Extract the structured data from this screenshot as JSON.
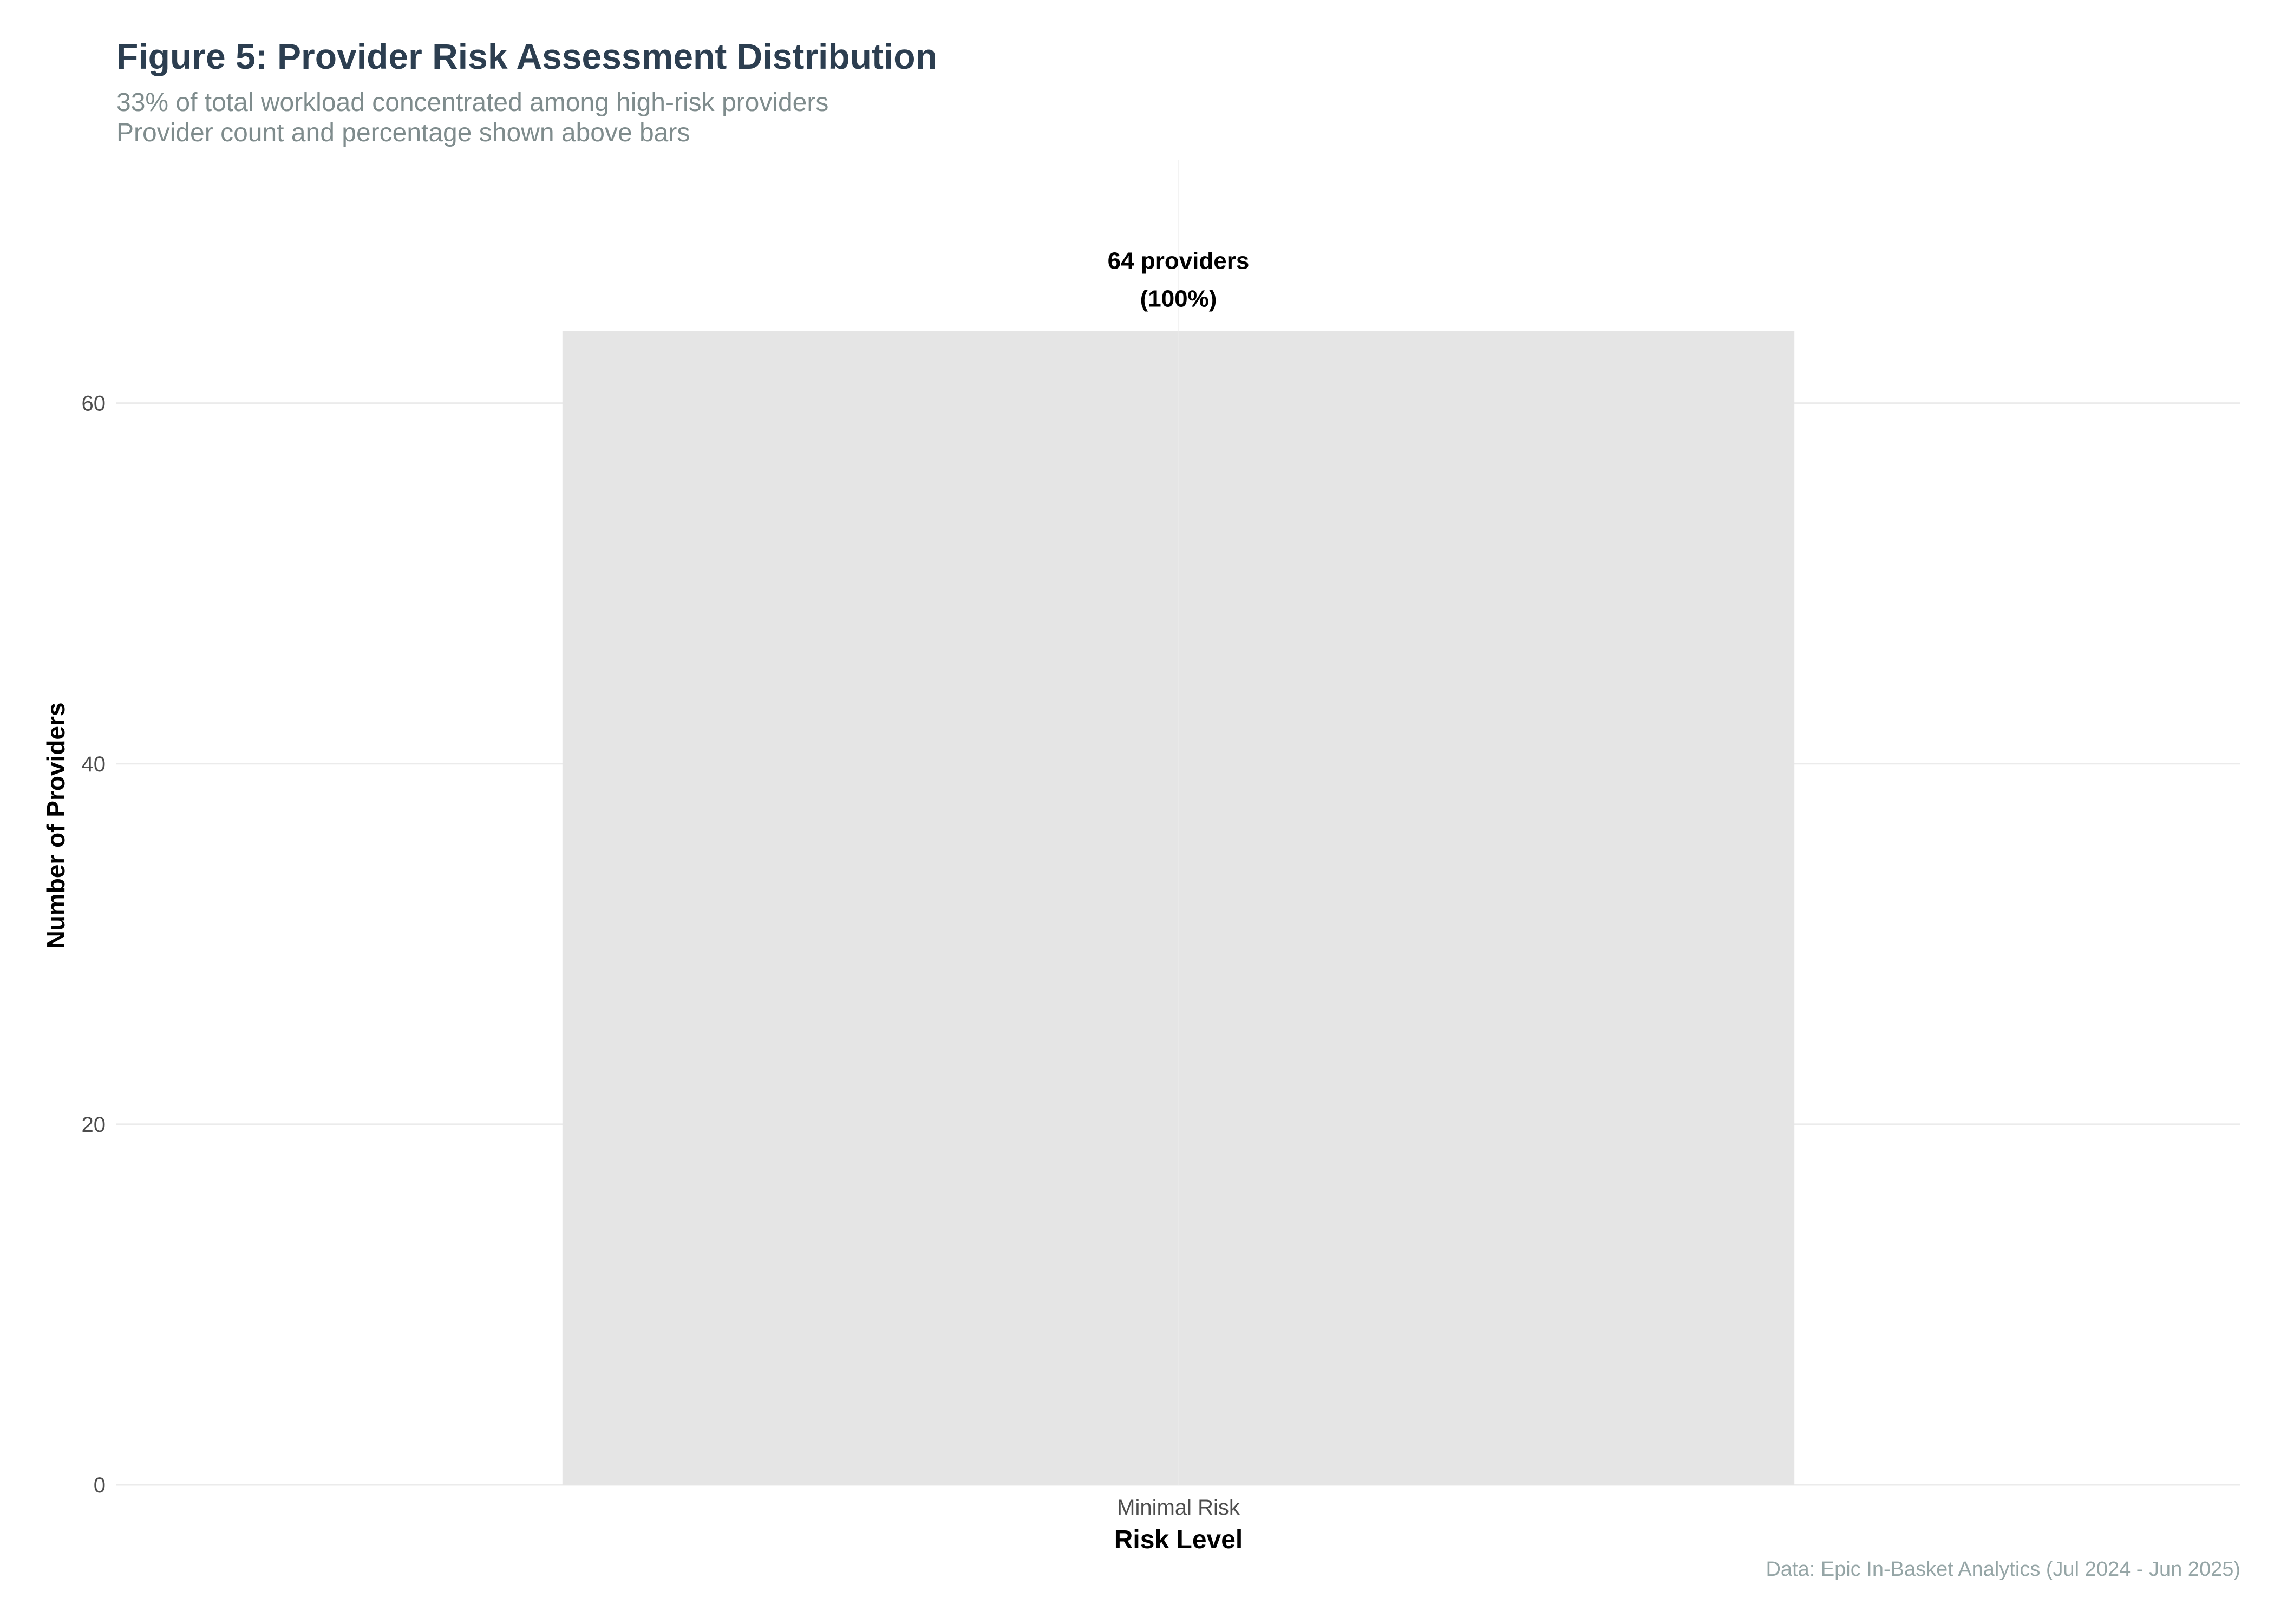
{
  "chart_data": {
    "type": "bar",
    "title": "Figure 5: Provider Risk Assessment Distribution",
    "subtitle": [
      "33% of total workload concentrated among high-risk providers",
      "Provider count and percentage shown above bars"
    ],
    "xlabel": "Risk Level",
    "ylabel": "Number of Providers",
    "categories": [
      "Minimal Risk"
    ],
    "values": [
      64
    ],
    "data_labels": [
      [
        "64 providers",
        "(100%)"
      ]
    ],
    "ylim": [
      0,
      73.5
    ],
    "yticks": [
      0,
      20,
      40,
      60
    ],
    "ytick_labels": [
      "0",
      "20",
      "40",
      "60"
    ],
    "grid": true,
    "legend": "none",
    "caption": "Data: Epic In-Basket Analytics (Jul 2024 - Jun 2025)",
    "colors": {
      "bar": "#e5e5e5",
      "grid": "#ebebeb",
      "title": "#2c3e50",
      "subtitle": "#7f8c8d",
      "caption": "#95a5a6",
      "tick_text": "#4d4d4d",
      "label_text": "#000000"
    }
  }
}
